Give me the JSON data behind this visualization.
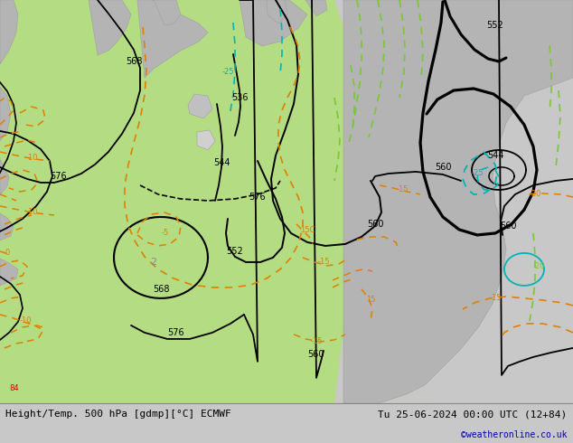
{
  "title_left": "Height/Temp. 500 hPa [gdmp][°C] ECMWF",
  "title_right": "Tu 25-06-2024 00:00 UTC (12+84)",
  "watermark": "©weatheronline.co.uk",
  "bg_gray": "#c8c8c8",
  "green": "#b4dc82",
  "sea_gray": "#c8c8c8",
  "land_gray": "#b4b4b4",
  "black": "#000000",
  "orange": "#e08000",
  "cyan": "#00b4b4",
  "lime": "#78c832",
  "red": "#dc0000",
  "label_fs": 7,
  "footer_fs": 8
}
